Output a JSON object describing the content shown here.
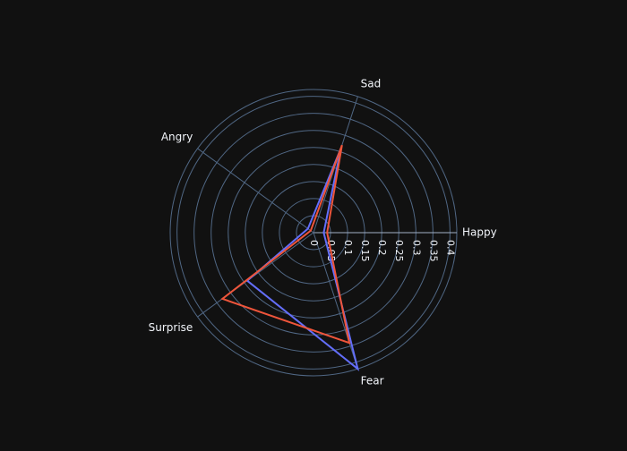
{
  "chart_data": {
    "type": "radar",
    "title": "",
    "categories": [
      "Happy",
      "Sad",
      "Angry",
      "Surprise",
      "Fear"
    ],
    "category_angles_deg": [
      0,
      72,
      144,
      216,
      288
    ],
    "radial_range": [
      0,
      0.42
    ],
    "radial_ticks": [
      0,
      0.05,
      0.1,
      0.15,
      0.2,
      0.25,
      0.3,
      0.35,
      0.4
    ],
    "radial_tick_labels": [
      "0",
      "0.05",
      "0.1",
      "0.15",
      "0.2",
      "0.25",
      "0.3",
      "0.35",
      "0.4"
    ],
    "grid": true,
    "series": [
      {
        "color": "#636efa",
        "values": [
          0.03,
          0.26,
          0.02,
          0.24,
          0.42
        ]
      },
      {
        "color": "#ef553b",
        "values": [
          0.04,
          0.27,
          0.01,
          0.33,
          0.34
        ]
      }
    ],
    "colors": {
      "background": "#111111",
      "grid": "#506784",
      "axis_line": "#a2b1c6",
      "text": "#f2f5fa"
    }
  }
}
